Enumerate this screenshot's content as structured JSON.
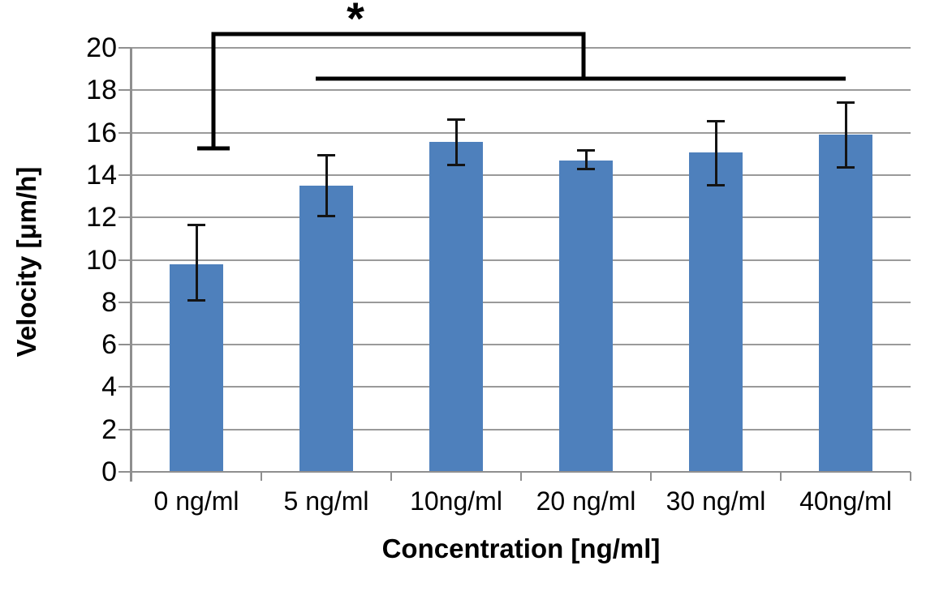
{
  "chart_data": {
    "type": "bar",
    "title": "",
    "xlabel": "Concentration [ng/ml]",
    "ylabel": "Velocity [μm/h]",
    "categories": [
      "0 ng/ml",
      "5 ng/ml",
      "10ng/ml",
      "20 ng/ml",
      "30 ng/ml",
      "40ng/ml"
    ],
    "values": [
      9.8,
      13.5,
      15.55,
      14.7,
      15.05,
      15.9
    ],
    "errors_plus": [
      1.85,
      1.45,
      1.1,
      0.5,
      1.5,
      1.55
    ],
    "errors_minus": [
      1.75,
      1.45,
      1.1,
      0.45,
      1.55,
      1.55
    ],
    "ylim": [
      0,
      20
    ],
    "yticks": [
      0,
      2,
      4,
      6,
      8,
      10,
      12,
      14,
      16,
      18,
      20
    ],
    "grid": true,
    "legend": null,
    "bar_color": "#4e80bc",
    "annotation": {
      "symbol": "*",
      "bracket_category": "0 ng/ml",
      "line_span_from": "5 ng/ml",
      "line_span_to": "40ng/ml"
    }
  }
}
